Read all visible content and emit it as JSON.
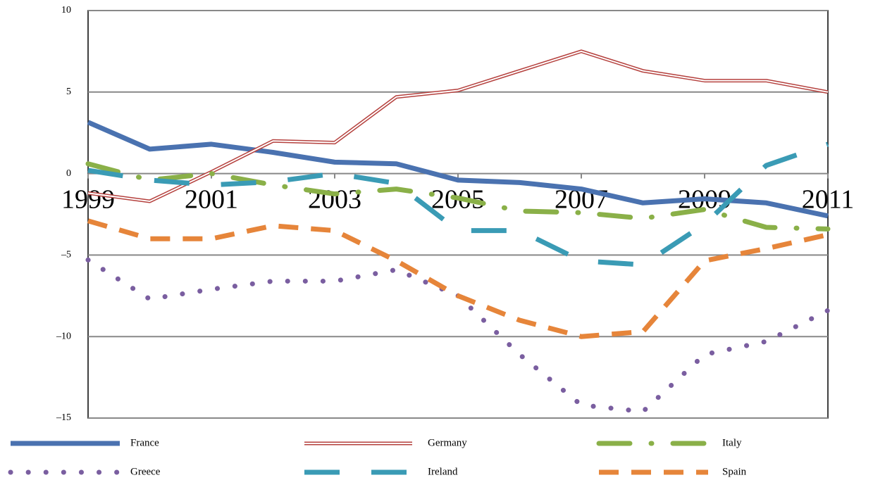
{
  "chart_data": {
    "type": "line",
    "x": [
      1999,
      2000,
      2001,
      2002,
      2003,
      2004,
      2005,
      2006,
      2007,
      2008,
      2009,
      2010,
      2011
    ],
    "xlim": [
      1999,
      2011
    ],
    "xticks": [
      1999,
      2001,
      2003,
      2005,
      2007,
      2009,
      2011
    ],
    "ylim": [
      -15,
      10
    ],
    "yticks": [
      {
        "value": -15,
        "label": "–15"
      },
      {
        "value": -10,
        "label": "–10"
      },
      {
        "value": -5,
        "label": "–5"
      },
      0,
      5,
      10
    ],
    "grid": true,
    "series": [
      {
        "name": "France",
        "color": "#4a72b0",
        "style": "solid",
        "values": [
          3.15,
          1.5,
          1.8,
          1.3,
          0.7,
          0.6,
          -0.4,
          -0.55,
          -0.95,
          -1.8,
          -1.55,
          -1.8,
          -2.6
        ]
      },
      {
        "name": "Germany",
        "color": "#b5413e",
        "style": "double",
        "values": [
          -1.2,
          -1.7,
          0.1,
          2.0,
          1.9,
          4.7,
          5.1,
          6.3,
          7.5,
          6.3,
          5.7,
          5.7,
          5.0
        ]
      },
      {
        "name": "Italy",
        "color": "#8ab048",
        "style": "dash-dot",
        "values": [
          0.6,
          -0.4,
          0,
          -0.7,
          -1.25,
          -0.95,
          -1.5,
          -2.3,
          -2.4,
          -2.75,
          -2.2,
          -3.3,
          -3.4
        ]
      },
      {
        "name": "Greece",
        "color": "#7a5ea0",
        "style": "dot",
        "values": [
          -5.3,
          -7.7,
          -7.1,
          -6.6,
          -6.6,
          -5.9,
          -7.5,
          -11.1,
          -14.2,
          -14.6,
          -11.1,
          -10.3,
          -8.4
        ]
      },
      {
        "name": "Ireland",
        "color": "#3a9bb5",
        "style": "long-dash",
        "values": [
          0.2,
          -0.4,
          -0.7,
          -0.5,
          0,
          -0.6,
          -3.5,
          -3.5,
          -5.35,
          -5.6,
          -3.1,
          0.5,
          1.8
        ]
      },
      {
        "name": "Spain",
        "color": "#e6853a",
        "style": "dash",
        "values": [
          -2.9,
          -4.0,
          -4.0,
          -3.2,
          -3.5,
          -5.35,
          -7.5,
          -9.0,
          -10.0,
          -9.7,
          -5.35,
          -4.6,
          -3.75
        ]
      }
    ]
  }
}
